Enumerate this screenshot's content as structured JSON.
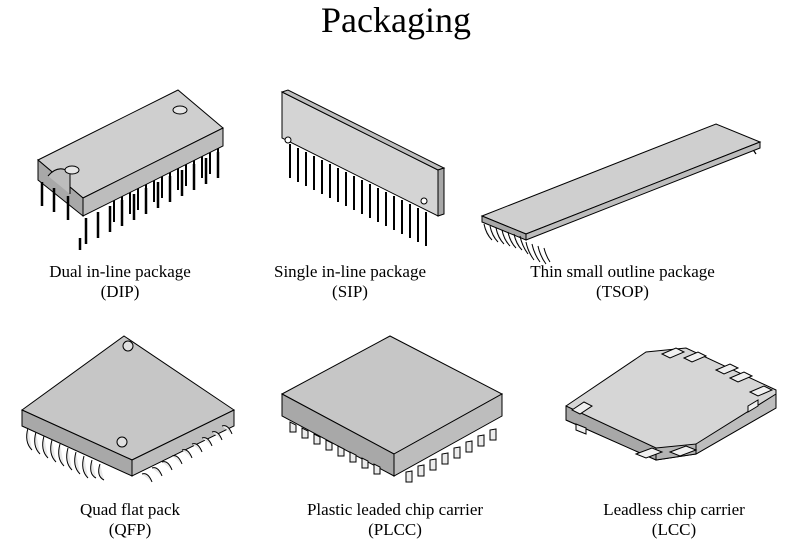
{
  "title": "Packaging",
  "colors": {
    "body_fill": "#d9d9d9",
    "top_fill": "#c6c6c6",
    "side_fill": "#a8a8a8",
    "stroke": "#000000"
  },
  "packages": [
    {
      "name": "Dual in-line package",
      "abbr": "(DIP)",
      "icon": "dip-package-icon"
    },
    {
      "name": "Single in-line package",
      "abbr": "(SIP)",
      "icon": "sip-package-icon"
    },
    {
      "name": "Thin small outline package",
      "abbr": "(TSOP)",
      "icon": "tsop-package-icon"
    },
    {
      "name": "Quad flat pack",
      "abbr": "(QFP)",
      "icon": "qfp-package-icon"
    },
    {
      "name": "Plastic leaded chip carrier",
      "abbr": "(PLCC)",
      "icon": "plcc-package-icon"
    },
    {
      "name": "Leadless chip carrier",
      "abbr": "(LCC)",
      "icon": "lcc-package-icon"
    }
  ]
}
